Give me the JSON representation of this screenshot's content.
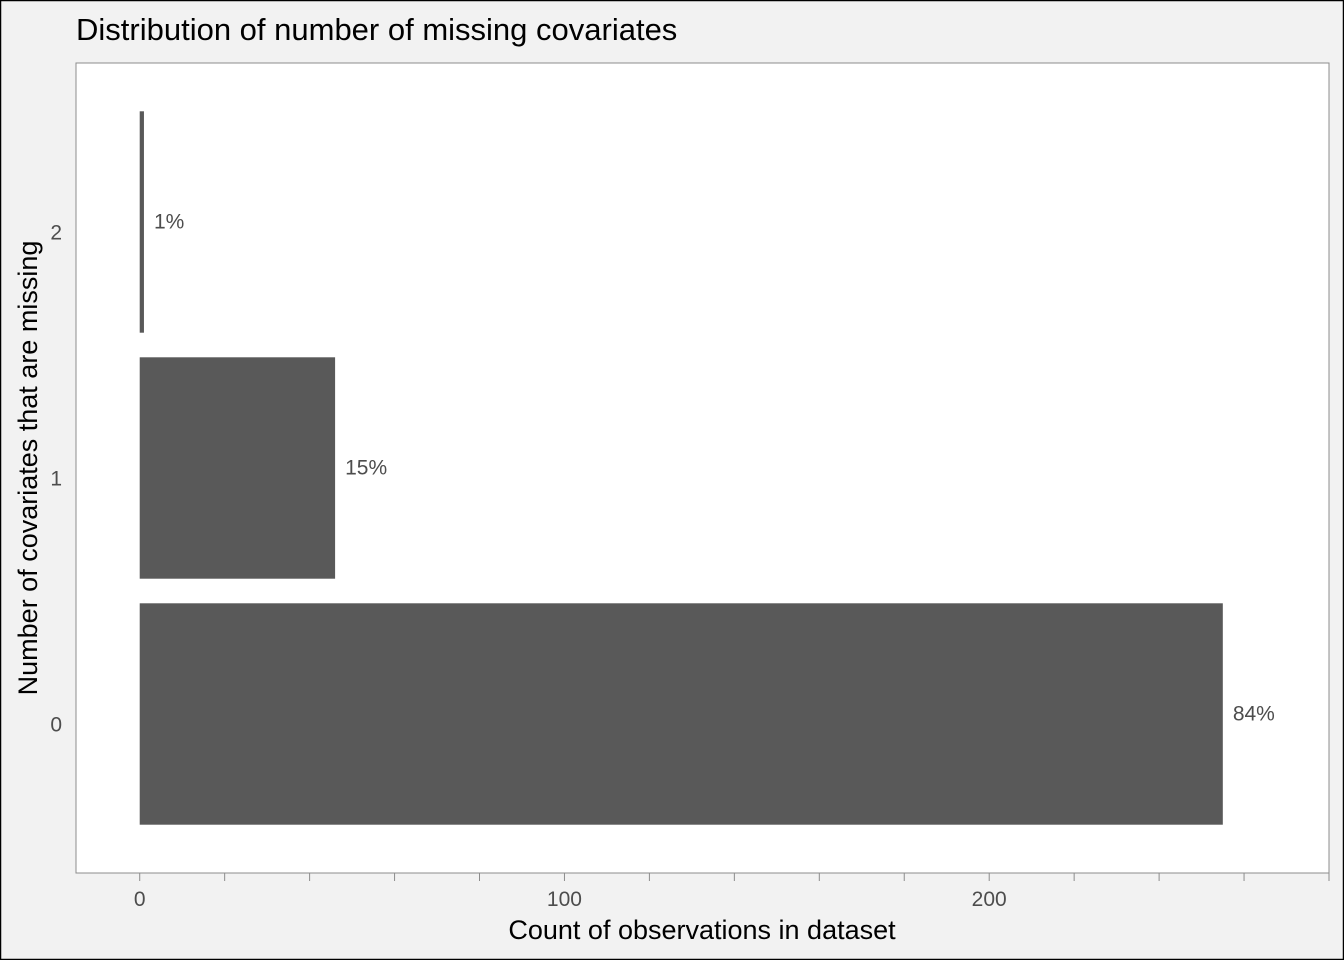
{
  "chart_data": {
    "type": "bar",
    "orientation": "horizontal",
    "title": "Distribution of number of missing covariates",
    "xlabel": "Count of observations in dataset",
    "ylabel": "Number of covariates that are missing",
    "categories": [
      "0",
      "1",
      "2"
    ],
    "values": [
      255,
      46,
      1
    ],
    "labels": [
      "84%",
      "15%",
      "1%"
    ],
    "xlim": [
      -15,
      280
    ],
    "x_major_ticks": [
      0,
      100,
      200
    ],
    "x_minor_ticks": [
      0,
      20,
      40,
      60,
      80,
      100,
      120,
      140,
      160,
      180,
      200,
      220,
      240,
      260,
      280
    ],
    "grid": false,
    "legend": "none"
  },
  "colors": {
    "background": "#f2f2f2",
    "panel": "#ffffff",
    "bar": "#595959",
    "panel_border": "#8c8c8c",
    "tick_text": "#4d4d4d",
    "border": "#000000"
  }
}
